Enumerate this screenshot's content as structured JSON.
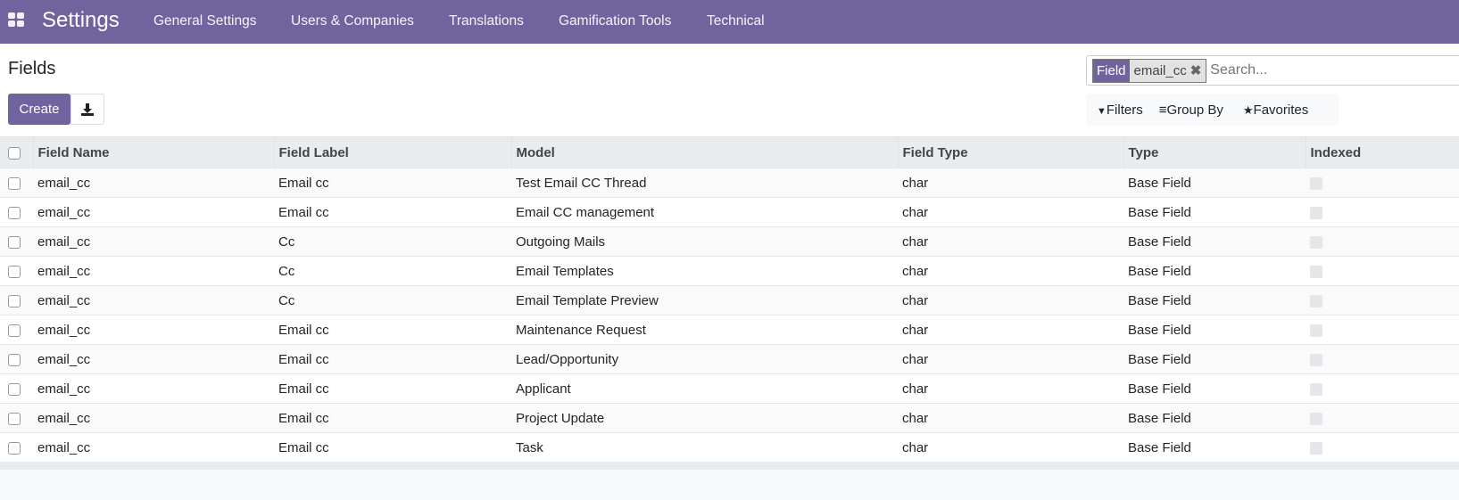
{
  "nav": {
    "brand": "Settings",
    "menu": [
      "General Settings",
      "Users & Companies",
      "Translations",
      "Gamification Tools",
      "Technical"
    ]
  },
  "page": {
    "title": "Fields",
    "create_label": "Create"
  },
  "search": {
    "facet_key": "Field",
    "facet_value": "email_cc",
    "placeholder": "Search..."
  },
  "filters": {
    "filters": "Filters",
    "group_by": "Group By",
    "favorites": "Favorites"
  },
  "colors": {
    "brand": "#71639e"
  },
  "table": {
    "headers": [
      "Field Name",
      "Field Label",
      "Model",
      "Field Type",
      "Type",
      "Indexed"
    ],
    "rows": [
      [
        "email_cc",
        "Email cc",
        "Test Email CC Thread",
        "char",
        "Base Field"
      ],
      [
        "email_cc",
        "Email cc",
        "Email CC management",
        "char",
        "Base Field"
      ],
      [
        "email_cc",
        "Cc",
        "Outgoing Mails",
        "char",
        "Base Field"
      ],
      [
        "email_cc",
        "Cc",
        "Email Templates",
        "char",
        "Base Field"
      ],
      [
        "email_cc",
        "Cc",
        "Email Template Preview",
        "char",
        "Base Field"
      ],
      [
        "email_cc",
        "Email cc",
        "Maintenance Request",
        "char",
        "Base Field"
      ],
      [
        "email_cc",
        "Email cc",
        "Lead/Opportunity",
        "char",
        "Base Field"
      ],
      [
        "email_cc",
        "Email cc",
        "Applicant",
        "char",
        "Base Field"
      ],
      [
        "email_cc",
        "Email cc",
        "Project Update",
        "char",
        "Base Field"
      ],
      [
        "email_cc",
        "Email cc",
        "Task",
        "char",
        "Base Field"
      ]
    ]
  }
}
